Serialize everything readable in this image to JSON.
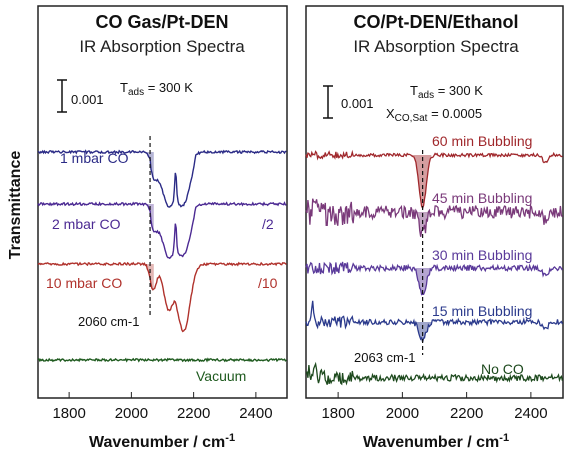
{
  "y_axis_label": "Transmittance",
  "chart_data": [
    {
      "type": "line",
      "title": "CO Gas/Pt-DEN",
      "subtitle": "IR Absorption Spectra",
      "xlabel": "Wavenumber / cm-1",
      "xlim": [
        1700,
        2500
      ],
      "x_ticks": [
        "1800",
        "2000",
        "2200",
        "2400"
      ],
      "scale_bar_label": "0.001",
      "condition": "T ads = 300 K",
      "marker_label": "2060 cm-1",
      "series": [
        {
          "name": "1 mbar CO",
          "color": "#2b2b86",
          "scale_label": "",
          "baseline": 0.0,
          "dips": [
            [
              2040,
              2040,
              2075,
              0.06,
              1.0
            ],
            [
              2070,
              25,
              0,
              0.07,
              1.0
            ],
            [
              2115,
              22,
              0,
              0.07,
              0.0
            ],
            [
              2140,
              4,
              0,
              0.08,
              0.0
            ],
            [
              2165,
              30,
              0,
              0.09,
              0.0
            ]
          ]
        },
        {
          "name": "2 mbar CO",
          "color": "#4c2a93",
          "scale_label": "/2",
          "baseline": 0.0,
          "dips": [
            [
              2040,
              2040,
              2075,
              0.1,
              1.0
            ],
            [
              2070,
              25,
              0,
              0.1,
              1.0
            ],
            [
              2115,
              22,
              0,
              0.1,
              0.0
            ],
            [
              2140,
              4,
              0,
              0.12,
              0.0
            ],
            [
              2165,
              30,
              0,
              0.12,
              0.0
            ]
          ]
        },
        {
          "name": "10 mbar CO",
          "color": "#b0322c",
          "scale_label": "/10",
          "baseline": 0.0,
          "dips": [
            [
              2040,
              2040,
              2075,
              0.08,
              1.0
            ],
            [
              2070,
              25,
              0,
              0.14,
              1.0
            ],
            [
              2115,
              22,
              0,
              0.18,
              0.0
            ],
            [
              2140,
              4,
              0,
              0.06,
              0.0
            ],
            [
              2165,
              30,
              0,
              0.3,
              0.0
            ]
          ]
        },
        {
          "name": "Vacuum",
          "color": "#1e5a1e",
          "scale_label": "",
          "baseline": 0.0,
          "dips": []
        }
      ]
    },
    {
      "type": "line",
      "title": "CO/Pt-DEN/Ethanol",
      "subtitle": "IR Absorption Spectra",
      "xlabel": "Wavenumber / cm-1",
      "xlim": [
        1700,
        2500
      ],
      "x_ticks": [
        "1800",
        "2000",
        "2200",
        "2400"
      ],
      "scale_bar_label": "0.001",
      "condition": "T ads = 300 K",
      "condition2": "X CO,Sat = 0.0005",
      "marker_label": "2063 cm-1",
      "series": [
        {
          "name": "60 min Bubbling",
          "color": "#a0282c",
          "peak_x": 2063
        },
        {
          "name": "45 min Bubbling",
          "color": "#7a3a7a",
          "peak_x": 2063
        },
        {
          "name": "30 min Bubbling",
          "color": "#5a3a9a",
          "peak_x": 2063
        },
        {
          "name": "15 min Bubbling",
          "color": "#2b3a8c",
          "peak_x": 2063
        },
        {
          "name": "No CO",
          "color": "#1e4a1e",
          "peak_x": 2063
        }
      ]
    }
  ]
}
